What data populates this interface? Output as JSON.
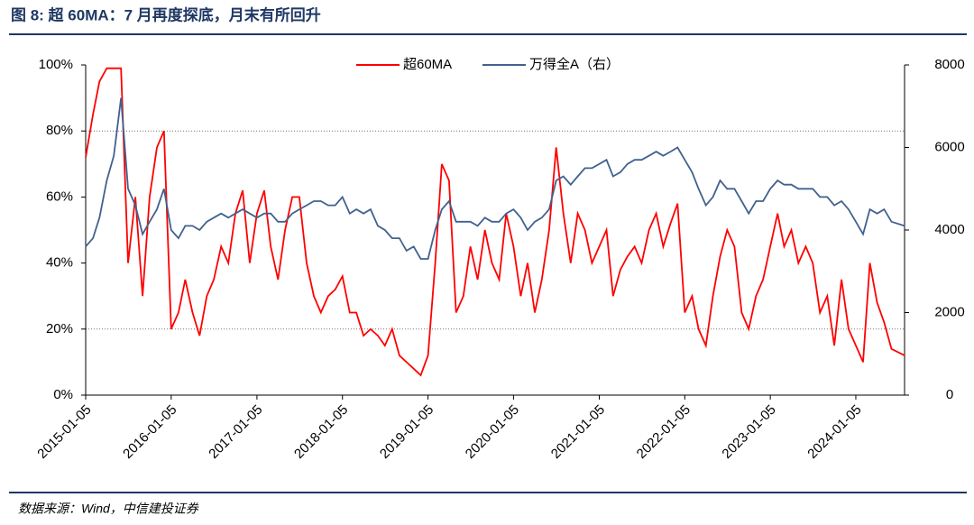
{
  "chart_data": {
    "type": "line",
    "title": "图 8: 超 60MA：7 月再度探底，月末有所回升",
    "source": "数据来源：Wind，中信建投证券",
    "x": [
      "2015-01-05",
      "2015-02-05",
      "2015-03-05",
      "2015-04-05",
      "2015-05-05",
      "2015-06-05",
      "2015-07-05",
      "2015-08-05",
      "2015-09-05",
      "2015-10-05",
      "2015-11-05",
      "2015-12-05",
      "2016-01-05",
      "2016-02-05",
      "2016-03-05",
      "2016-04-05",
      "2016-05-05",
      "2016-06-05",
      "2016-07-05",
      "2016-08-05",
      "2016-09-05",
      "2016-10-05",
      "2016-11-05",
      "2016-12-05",
      "2017-01-05",
      "2017-02-05",
      "2017-03-05",
      "2017-04-05",
      "2017-05-05",
      "2017-06-05",
      "2017-07-05",
      "2017-08-05",
      "2017-09-05",
      "2017-10-05",
      "2017-11-05",
      "2017-12-05",
      "2018-01-05",
      "2018-02-05",
      "2018-03-05",
      "2018-04-05",
      "2018-05-05",
      "2018-06-05",
      "2018-07-05",
      "2018-08-05",
      "2018-09-05",
      "2018-10-05",
      "2018-11-05",
      "2018-12-05",
      "2019-01-05",
      "2019-02-05",
      "2019-03-05",
      "2019-04-05",
      "2019-05-05",
      "2019-06-05",
      "2019-07-05",
      "2019-08-05",
      "2019-09-05",
      "2019-10-05",
      "2019-11-05",
      "2019-12-05",
      "2020-01-05",
      "2020-02-05",
      "2020-03-05",
      "2020-04-05",
      "2020-05-05",
      "2020-06-05",
      "2020-07-05",
      "2020-08-05",
      "2020-09-05",
      "2020-10-05",
      "2020-11-05",
      "2020-12-05",
      "2021-01-05",
      "2021-02-05",
      "2021-03-05",
      "2021-04-05",
      "2021-05-05",
      "2021-06-05",
      "2021-07-05",
      "2021-08-05",
      "2021-09-05",
      "2021-10-05",
      "2021-11-05",
      "2021-12-05",
      "2022-01-05",
      "2022-02-05",
      "2022-03-05",
      "2022-04-05",
      "2022-05-05",
      "2022-06-05",
      "2022-07-05",
      "2022-08-05",
      "2022-09-05",
      "2022-10-05",
      "2022-11-05",
      "2022-12-05",
      "2023-01-05",
      "2023-02-05",
      "2023-03-05",
      "2023-04-05",
      "2023-05-05",
      "2023-06-05",
      "2023-07-05",
      "2023-08-05",
      "2023-09-05",
      "2023-10-05",
      "2023-11-05",
      "2023-12-05",
      "2024-01-05",
      "2024-02-05",
      "2024-03-05",
      "2024-04-05",
      "2024-05-05",
      "2024-06-05",
      "2024-07-31"
    ],
    "xlim": [
      "2015-01-05",
      "2024-07-31"
    ],
    "xticks": [
      "2015-01-05",
      "2016-01-05",
      "2017-01-05",
      "2018-01-05",
      "2019-01-05",
      "2020-01-05",
      "2021-01-05",
      "2022-01-05",
      "2023-01-05",
      "2024-01-05"
    ],
    "ylim": [
      0,
      100
    ],
    "yticks": [
      {
        "value": 0,
        "label": "0%"
      },
      {
        "value": 20,
        "label": "20%"
      },
      {
        "value": 40,
        "label": "40%"
      },
      {
        "value": 60,
        "label": "60%"
      },
      {
        "value": 80,
        "label": "80%"
      },
      {
        "value": 100,
        "label": "100%"
      }
    ],
    "grid_y": [
      20,
      80
    ],
    "y2lim": [
      0,
      8000
    ],
    "y2ticks": [
      0,
      2000,
      4000,
      6000,
      8000
    ],
    "legend": "top",
    "series": [
      {
        "name": "超60MA",
        "color": "#ff0000",
        "values": [
          72,
          85,
          95,
          99,
          99,
          99,
          40,
          60,
          30,
          60,
          75,
          80,
          20,
          25,
          35,
          25,
          18,
          30,
          35,
          45,
          40,
          55,
          62,
          40,
          55,
          62,
          45,
          35,
          50,
          60,
          60,
          40,
          30,
          25,
          30,
          32,
          36,
          25,
          25,
          18,
          20,
          18,
          15,
          20,
          12,
          10,
          8,
          6,
          12,
          40,
          70,
          65,
          25,
          30,
          45,
          35,
          50,
          40,
          35,
          55,
          45,
          30,
          40,
          25,
          35,
          50,
          75,
          55,
          40,
          55,
          50,
          40,
          45,
          50,
          30,
          38,
          42,
          45,
          40,
          50,
          55,
          45,
          52,
          58,
          25,
          30,
          20,
          15,
          30,
          42,
          50,
          45,
          25,
          20,
          30,
          35,
          45,
          55,
          45,
          50,
          40,
          45,
          40,
          25,
          30,
          15,
          35,
          20,
          15,
          10,
          40,
          28,
          22,
          14,
          12
        ]
      },
      {
        "name": "万得全A（右）",
        "color": "#41618f",
        "axis": "y2",
        "values": [
          3600,
          3800,
          4300,
          5200,
          5800,
          7200,
          5000,
          4600,
          3900,
          4200,
          4500,
          5000,
          4000,
          3800,
          4100,
          4100,
          4000,
          4200,
          4300,
          4400,
          4300,
          4400,
          4500,
          4400,
          4300,
          4400,
          4400,
          4200,
          4200,
          4400,
          4500,
          4600,
          4700,
          4700,
          4600,
          4600,
          4800,
          4400,
          4500,
          4400,
          4500,
          4100,
          4000,
          3800,
          3800,
          3500,
          3600,
          3300,
          3300,
          4000,
          4500,
          4700,
          4200,
          4200,
          4200,
          4100,
          4300,
          4200,
          4200,
          4400,
          4500,
          4300,
          4000,
          4200,
          4300,
          4500,
          5200,
          5300,
          5100,
          5300,
          5500,
          5500,
          5600,
          5700,
          5300,
          5400,
          5600,
          5700,
          5700,
          5800,
          5900,
          5800,
          5900,
          6000,
          5700,
          5400,
          5000,
          4600,
          4800,
          5200,
          5000,
          5000,
          4700,
          4400,
          4700,
          4700,
          5000,
          5200,
          5100,
          5100,
          5000,
          5000,
          5000,
          4800,
          4800,
          4600,
          4700,
          4500,
          4200,
          3900,
          4500,
          4400,
          4500,
          4200,
          4100
        ]
      }
    ]
  }
}
